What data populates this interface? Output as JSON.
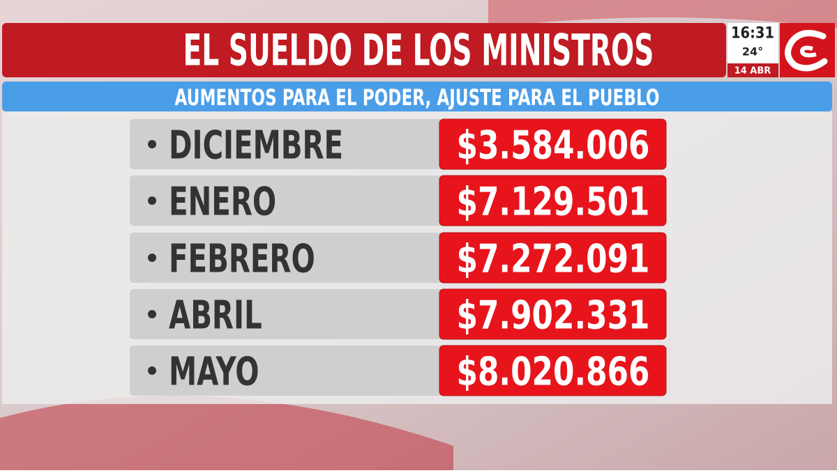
{
  "header": {
    "title": "EL SUELDO DE LOS MINISTROS",
    "subtitle": "AUMENTOS PARA EL PODER, AJUSTE PARA EL PUEBLO"
  },
  "clock": {
    "time": "16:31",
    "temperature": "24°",
    "date": "14 ABR"
  },
  "table": {
    "rows": [
      [
        "DICIEMBRE",
        "$3.584.006"
      ],
      [
        "ENERO",
        "$7.129.501"
      ],
      [
        "FEBRERO",
        "$7.272.091"
      ],
      [
        "ABRIL",
        "$7.902.331"
      ],
      [
        "MAYO",
        "$8.020.866"
      ]
    ]
  }
}
